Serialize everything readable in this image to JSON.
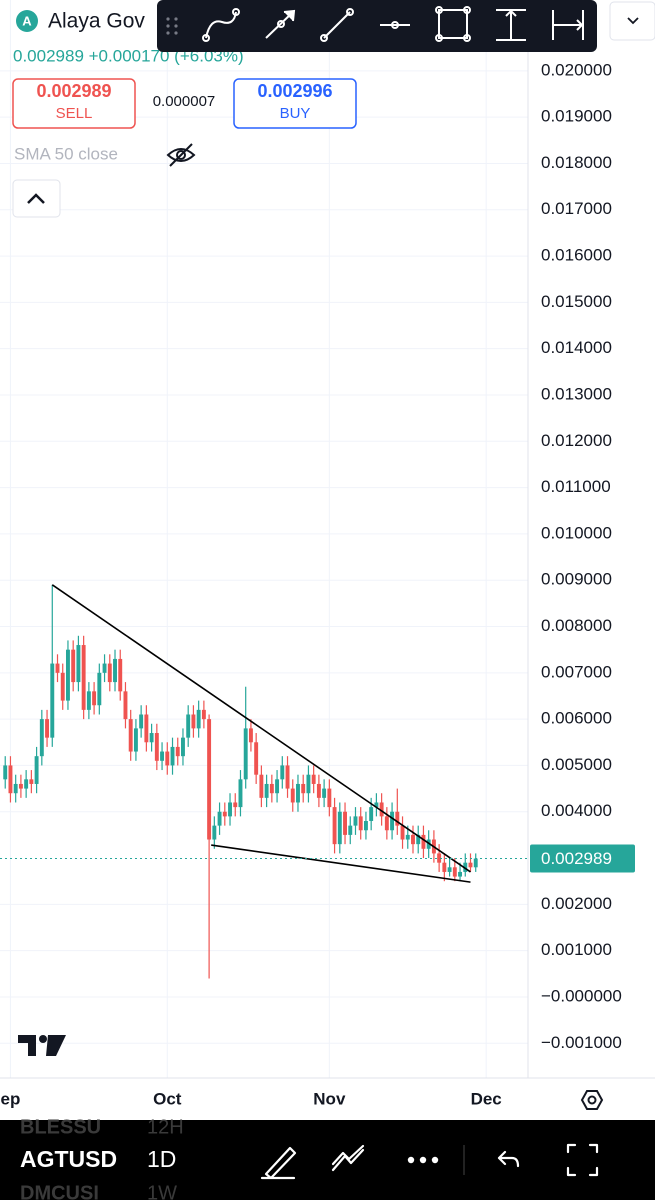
{
  "header": {
    "name": "Alaya Gov",
    "quote": "0.002989 +0.000170 (+6.03%)"
  },
  "trade": {
    "sell_price": "0.002989",
    "sell_label": "SELL",
    "spread": "0.000007",
    "buy_price": "0.002996",
    "buy_label": "BUY"
  },
  "indicator": "SMA 50 close",
  "bottom_bar": {
    "symbols": [
      {
        "symbol": "BLESSU",
        "interval": "12H"
      },
      {
        "symbol": "AGTUSD",
        "interval": "1D"
      },
      {
        "symbol": "DMCUSI",
        "interval": "1W"
      }
    ]
  },
  "chart_data": {
    "type": "candlestick",
    "up_color": "#26a69a",
    "down_color": "#ef5350",
    "grid": true,
    "xlim": [
      -2,
      99
    ],
    "xticks": [
      {
        "value": 0,
        "label": "ep"
      },
      {
        "value": 30,
        "label": "Oct"
      },
      {
        "value": 61,
        "label": "Nov"
      },
      {
        "value": 91,
        "label": "Dec"
      }
    ],
    "ylim": [
      -0.00175,
      0.02153
    ],
    "yticks": [
      {
        "value": 0.02,
        "label": "0.020000"
      },
      {
        "value": 0.019,
        "label": "0.019000"
      },
      {
        "value": 0.018,
        "label": "0.018000"
      },
      {
        "value": 0.017,
        "label": "0.017000"
      },
      {
        "value": 0.016,
        "label": "0.016000"
      },
      {
        "value": 0.015,
        "label": "0.015000"
      },
      {
        "value": 0.014,
        "label": "0.014000"
      },
      {
        "value": 0.013,
        "label": "0.013000"
      },
      {
        "value": 0.012,
        "label": "0.012000"
      },
      {
        "value": 0.011,
        "label": "0.011000"
      },
      {
        "value": 0.01,
        "label": "0.010000"
      },
      {
        "value": 0.009,
        "label": "0.009000"
      },
      {
        "value": 0.008,
        "label": "0.008000"
      },
      {
        "value": 0.007,
        "label": "0.007000"
      },
      {
        "value": 0.006,
        "label": "0.006000"
      },
      {
        "value": 0.005,
        "label": "0.005000"
      },
      {
        "value": 0.004,
        "label": "0.004000"
      },
      {
        "value": 0.002,
        "label": "0.002000"
      },
      {
        "value": 0.001,
        "label": "0.001000"
      },
      {
        "value": 0,
        "label": "−0.000000"
      },
      {
        "value": -0.001,
        "label": "−0.001000"
      }
    ],
    "last_price": 0.002989,
    "last_price_color": "#26a69a",
    "x": [
      -1,
      0,
      1,
      2,
      3,
      4,
      5,
      6,
      7,
      8,
      9,
      10,
      11,
      12,
      13,
      14,
      15,
      16,
      17,
      18,
      19,
      20,
      21,
      22,
      23,
      24,
      25,
      26,
      27,
      28,
      29,
      30,
      31,
      32,
      33,
      34,
      35,
      36,
      37,
      38,
      39,
      40,
      41,
      42,
      43,
      44,
      45,
      46,
      47,
      48,
      49,
      50,
      51,
      52,
      53,
      54,
      55,
      56,
      57,
      58,
      59,
      60,
      61,
      62,
      63,
      64,
      65,
      66,
      67,
      68,
      69,
      70,
      71,
      72,
      73,
      74,
      75,
      76,
      77,
      78,
      79,
      80,
      81,
      82,
      83,
      84,
      85,
      86,
      87,
      88,
      89
    ],
    "open": [
      0.0047,
      0.005,
      0.0044,
      0.0046,
      0.0045,
      0.0047,
      0.0046,
      0.0052,
      0.006,
      0.0056,
      0.0072,
      0.007,
      0.0064,
      0.0075,
      0.0068,
      0.0076,
      0.0062,
      0.0066,
      0.0063,
      0.007,
      0.0072,
      0.0068,
      0.0073,
      0.0066,
      0.006,
      0.0053,
      0.0058,
      0.0061,
      0.0055,
      0.0057,
      0.0051,
      0.0053,
      0.005,
      0.0054,
      0.0052,
      0.0056,
      0.0061,
      0.0058,
      0.0062,
      0.006,
      0.0034,
      0.0037,
      0.004,
      0.0039,
      0.0042,
      0.0041,
      0.0047,
      0.0058,
      0.0055,
      0.0048,
      0.0043,
      0.0046,
      0.0044,
      0.0047,
      0.005,
      0.0045,
      0.0042,
      0.0046,
      0.0044,
      0.0048,
      0.0046,
      0.0043,
      0.0045,
      0.0041,
      0.0033,
      0.004,
      0.0035,
      0.0037,
      0.0039,
      0.0036,
      0.0038,
      0.0041,
      0.0042,
      0.0039,
      0.0036,
      0.004,
      0.0037,
      0.0034,
      0.0035,
      0.0033,
      0.0035,
      0.0032,
      0.0034,
      0.0031,
      0.0029,
      0.0027,
      0.0028,
      0.0026,
      0.0027,
      0.0029,
      0.0028
    ],
    "high": [
      0.0052,
      0.0052,
      0.0048,
      0.0048,
      0.0049,
      0.0049,
      0.0054,
      0.0062,
      0.0062,
      0.0089,
      0.0074,
      0.0072,
      0.0077,
      0.0077,
      0.0078,
      0.0078,
      0.0068,
      0.0068,
      0.0072,
      0.0074,
      0.0074,
      0.0075,
      0.0075,
      0.0068,
      0.0062,
      0.006,
      0.0063,
      0.0063,
      0.0059,
      0.0059,
      0.0055,
      0.0055,
      0.0056,
      0.0056,
      0.0058,
      0.0063,
      0.0063,
      0.0064,
      0.0064,
      0.0061,
      0.0039,
      0.0042,
      0.0042,
      0.0044,
      0.0044,
      0.0049,
      0.0067,
      0.006,
      0.0057,
      0.005,
      0.0048,
      0.0048,
      0.0049,
      0.0052,
      0.0052,
      0.0047,
      0.0048,
      0.0048,
      0.005,
      0.005,
      0.0048,
      0.0047,
      0.0047,
      0.0043,
      0.0042,
      0.0042,
      0.0039,
      0.0041,
      0.0041,
      0.004,
      0.0043,
      0.0044,
      0.0044,
      0.0041,
      0.0042,
      0.0045,
      0.0039,
      0.0037,
      0.0037,
      0.0037,
      0.0037,
      0.0036,
      0.0036,
      0.0033,
      0.0031,
      0.003,
      0.003,
      0.0029,
      0.0031,
      0.0031,
      0.0031
    ],
    "low": [
      0.0045,
      0.0042,
      0.0042,
      0.0043,
      0.0043,
      0.0044,
      0.0044,
      0.005,
      0.0054,
      0.0054,
      0.0068,
      0.0062,
      0.0062,
      0.0066,
      0.0066,
      0.006,
      0.006,
      0.0061,
      0.0061,
      0.0068,
      0.0066,
      0.0066,
      0.0064,
      0.0058,
      0.0051,
      0.0051,
      0.0056,
      0.0053,
      0.0053,
      0.0049,
      0.0049,
      0.0048,
      0.0048,
      0.005,
      0.005,
      0.0054,
      0.0056,
      0.0056,
      0.0058,
      0.0004,
      0.0032,
      0.0035,
      0.0037,
      0.0037,
      0.0039,
      0.0039,
      0.0045,
      0.0053,
      0.0046,
      0.0041,
      0.0041,
      0.0042,
      0.0042,
      0.0045,
      0.0043,
      0.004,
      0.004,
      0.0042,
      0.0042,
      0.0044,
      0.0041,
      0.0041,
      0.0039,
      0.0031,
      0.0031,
      0.0033,
      0.0033,
      0.0035,
      0.0034,
      0.0034,
      0.0036,
      0.0039,
      0.0037,
      0.0034,
      0.0034,
      0.0035,
      0.0032,
      0.0032,
      0.0031,
      0.0031,
      0.003,
      0.003,
      0.0029,
      0.0027,
      0.0025,
      0.0026,
      0.0025,
      0.0025,
      0.0026,
      0.0027,
      0.0027
    ],
    "close": [
      0.005,
      0.0044,
      0.0046,
      0.0045,
      0.0047,
      0.0046,
      0.0052,
      0.006,
      0.0056,
      0.0072,
      0.007,
      0.0064,
      0.0075,
      0.0068,
      0.0076,
      0.0062,
      0.0066,
      0.0063,
      0.007,
      0.0072,
      0.0068,
      0.0073,
      0.0066,
      0.006,
      0.0053,
      0.0058,
      0.0061,
      0.0055,
      0.0057,
      0.0051,
      0.0053,
      0.005,
      0.0054,
      0.0052,
      0.0056,
      0.0061,
      0.0058,
      0.0062,
      0.006,
      0.0034,
      0.0037,
      0.004,
      0.0039,
      0.0042,
      0.0041,
      0.0047,
      0.0058,
      0.0055,
      0.0048,
      0.0043,
      0.0046,
      0.0044,
      0.0047,
      0.005,
      0.0045,
      0.0042,
      0.0046,
      0.0044,
      0.0048,
      0.0046,
      0.0043,
      0.0045,
      0.0041,
      0.0033,
      0.004,
      0.0035,
      0.0037,
      0.0039,
      0.0036,
      0.0038,
      0.0041,
      0.0042,
      0.0039,
      0.0036,
      0.004,
      0.0037,
      0.0034,
      0.0035,
      0.0033,
      0.0035,
      0.0032,
      0.0034,
      0.0031,
      0.0029,
      0.0027,
      0.0028,
      0.0026,
      0.0027,
      0.0029,
      0.0028,
      0.002989
    ],
    "trendlines": [
      {
        "x": [
          8,
          88
        ],
        "y": [
          0.0089,
          0.0027
        ]
      },
      {
        "x": [
          38.4,
          88
        ],
        "y": [
          0.00328,
          0.00248
        ]
      }
    ]
  }
}
